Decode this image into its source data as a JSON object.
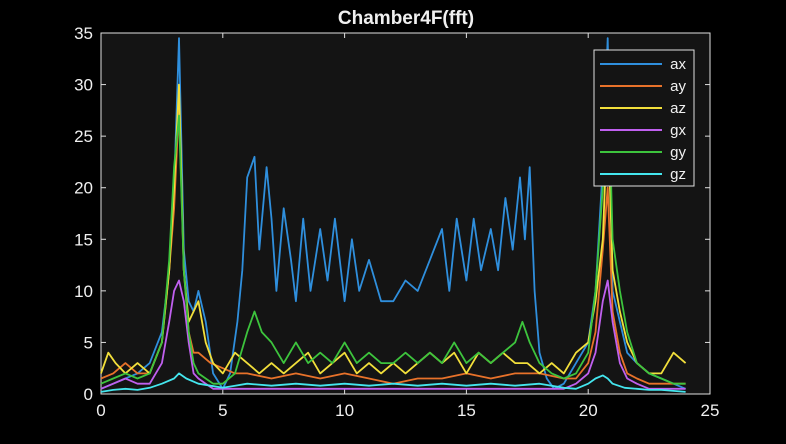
{
  "chart_data": {
    "type": "line",
    "title": "Chamber4F(fft)",
    "xlabel": "",
    "ylabel": "",
    "xlim": [
      0,
      25
    ],
    "ylim": [
      0,
      35
    ],
    "xticks": [
      0,
      5,
      10,
      15,
      20,
      25
    ],
    "yticks": [
      0,
      5,
      10,
      15,
      20,
      25,
      30,
      35
    ],
    "grid": false,
    "legend_position": "top-right",
    "background": "#141414",
    "axis_color": "#e0e0e0",
    "series": [
      {
        "name": "ax",
        "color": "#2f8fdd",
        "x": [
          0,
          0.5,
          1,
          1.5,
          2,
          2.5,
          2.8,
          3,
          3.2,
          3.4,
          3.6,
          3.8,
          4,
          4.3,
          4.6,
          5,
          5.3,
          5.6,
          5.8,
          6,
          6.3,
          6.5,
          6.8,
          7,
          7.2,
          7.5,
          7.8,
          8,
          8.3,
          8.6,
          9,
          9.3,
          9.6,
          10,
          10.3,
          10.6,
          11,
          11.5,
          12,
          12.5,
          13,
          13.5,
          14,
          14.3,
          14.6,
          15,
          15.3,
          15.6,
          16,
          16.3,
          16.6,
          16.9,
          17.2,
          17.4,
          17.6,
          17.8,
          18,
          18.3,
          18.6,
          19,
          19.5,
          20,
          20.3,
          20.6,
          20.8,
          21,
          21.3,
          21.6,
          22,
          22.5,
          23,
          23.5,
          24
        ],
        "values": [
          0.5,
          1,
          1.5,
          2,
          3,
          6,
          12,
          20,
          34.5,
          14,
          9,
          8,
          10,
          7,
          2,
          0.5,
          2,
          7,
          12,
          21,
          23,
          14,
          22,
          17,
          10,
          18,
          13,
          9,
          17,
          10,
          16,
          11,
          17,
          9,
          15,
          10,
          13,
          9,
          9,
          11,
          10,
          13,
          16,
          10,
          17,
          11,
          17,
          12,
          16,
          12,
          19,
          14,
          21,
          15,
          22,
          10,
          4,
          1.5,
          0.5,
          1,
          3,
          5,
          10,
          22,
          34.5,
          10,
          7,
          4,
          3,
          2,
          1.5,
          1,
          0.5
        ]
      },
      {
        "name": "ay",
        "color": "#e8722a",
        "x": [
          0,
          0.5,
          1,
          1.5,
          2,
          2.5,
          2.8,
          3,
          3.2,
          3.4,
          3.6,
          3.8,
          4,
          4.5,
          5,
          5.5,
          6,
          7,
          8,
          9,
          10,
          11,
          12,
          13,
          14,
          15,
          16,
          17,
          18,
          19,
          19.5,
          20,
          20.3,
          20.6,
          20.8,
          21,
          21.3,
          21.6,
          22,
          22.5,
          23,
          23.5,
          24
        ],
        "values": [
          1.5,
          2,
          3,
          2,
          2,
          5,
          12,
          18,
          28,
          12,
          6,
          4,
          4,
          3,
          2.5,
          2,
          2,
          1.5,
          2,
          1.5,
          2,
          1.5,
          1,
          1.5,
          1.5,
          2,
          1.5,
          2,
          2,
          1.5,
          1.5,
          3,
          6,
          14,
          20,
          8,
          4,
          2,
          1.5,
          1,
          1,
          1,
          1
        ]
      },
      {
        "name": "az",
        "color": "#f2df3b",
        "x": [
          0,
          0.3,
          0.6,
          1,
          1.5,
          2,
          2.5,
          2.8,
          3,
          3.2,
          3.4,
          3.6,
          3.8,
          4,
          4.3,
          4.6,
          5,
          5.5,
          6,
          6.5,
          7,
          7.5,
          8,
          8.5,
          9,
          9.5,
          10,
          10.5,
          11,
          11.5,
          12,
          12.5,
          13,
          13.5,
          14,
          14.5,
          15,
          15.5,
          16,
          16.5,
          17,
          17.5,
          18,
          18.5,
          19,
          19.5,
          20,
          20.3,
          20.6,
          20.8,
          21,
          21.3,
          21.6,
          22,
          22.5,
          23,
          23.5,
          24
        ],
        "values": [
          2,
          4,
          3,
          2,
          3,
          2,
          5,
          12,
          20,
          30,
          12,
          7,
          8,
          9,
          5,
          3,
          2,
          4,
          3,
          2,
          3,
          2,
          3,
          4,
          2,
          3,
          4,
          2,
          3,
          2,
          3,
          2,
          3,
          4,
          3,
          4,
          2,
          4,
          3,
          4,
          3,
          3,
          2,
          3,
          2,
          4,
          5,
          9,
          15,
          27,
          12,
          8,
          5,
          3,
          2,
          2,
          4,
          3
        ]
      },
      {
        "name": "gx",
        "color": "#c060ef",
        "x": [
          0,
          0.5,
          1,
          1.5,
          2,
          2.5,
          2.8,
          3,
          3.2,
          3.4,
          3.6,
          3.8,
          4,
          4.3,
          4.6,
          5,
          5.5,
          6,
          7,
          8,
          9,
          10,
          11,
          12,
          13,
          14,
          15,
          16,
          17,
          18,
          19,
          19.5,
          20,
          20.3,
          20.6,
          20.8,
          21,
          21.3,
          21.6,
          22,
          22.5,
          23,
          23.5,
          24
        ],
        "values": [
          0.5,
          1,
          1.5,
          1,
          1,
          3,
          7,
          10,
          11,
          9,
          5,
          2,
          1.5,
          1,
          0.5,
          0.5,
          0.5,
          0.5,
          0.5,
          0.5,
          0.5,
          0.5,
          0.5,
          0.5,
          0.5,
          0.5,
          0.5,
          0.5,
          0.5,
          0.5,
          0.5,
          1,
          2,
          4,
          9,
          11,
          7,
          3,
          1.5,
          1,
          0.5,
          0.5,
          0.5,
          0.5
        ]
      },
      {
        "name": "gy",
        "color": "#3dc43d",
        "x": [
          0,
          0.5,
          1,
          1.5,
          2,
          2.5,
          2.8,
          3,
          3.2,
          3.4,
          3.6,
          3.8,
          4,
          4.3,
          4.6,
          5,
          5.5,
          6,
          6.3,
          6.6,
          7,
          7.5,
          8,
          8.5,
          9,
          9.5,
          10,
          10.5,
          11,
          11.5,
          12,
          12.5,
          13,
          13.5,
          14,
          14.5,
          15,
          15.5,
          16,
          16.5,
          17,
          17.3,
          17.6,
          18,
          18.5,
          19,
          19.5,
          20,
          20.3,
          20.6,
          20.8,
          21,
          21.3,
          21.6,
          22,
          22.5,
          23,
          23.5,
          24
        ],
        "values": [
          1,
          1.5,
          2,
          1.5,
          2,
          5,
          13,
          22,
          27,
          12,
          6,
          3,
          2,
          1.5,
          1,
          1,
          2,
          6,
          8,
          6,
          5,
          3,
          5,
          3,
          4,
          3,
          5,
          3,
          4,
          3,
          3,
          4,
          3,
          4,
          3,
          5,
          3,
          4,
          3,
          4,
          5,
          7,
          5,
          3,
          2,
          1.5,
          2,
          4,
          10,
          20,
          33,
          15,
          10,
          6,
          3,
          2,
          1.5,
          1,
          1
        ]
      },
      {
        "name": "gz",
        "color": "#44e6ee",
        "x": [
          0,
          0.5,
          1,
          1.5,
          2,
          2.5,
          3,
          3.2,
          3.5,
          4,
          4.5,
          5,
          5.5,
          6,
          7,
          8,
          9,
          10,
          11,
          12,
          13,
          14,
          15,
          16,
          17,
          18,
          19,
          19.5,
          20,
          20.3,
          20.6,
          20.8,
          21,
          21.5,
          22,
          22.5,
          23,
          23.5,
          24
        ],
        "values": [
          0.2,
          0.4,
          0.5,
          0.4,
          0.6,
          1,
          1.5,
          2,
          1.5,
          1,
          0.8,
          0.6,
          0.8,
          1,
          0.8,
          1,
          0.8,
          1,
          0.8,
          1,
          0.8,
          1,
          0.8,
          1,
          0.8,
          1,
          0.6,
          0.5,
          1,
          1.5,
          1.8,
          1.5,
          1,
          0.6,
          0.5,
          0.4,
          0.4,
          0.3,
          0.2
        ]
      }
    ]
  }
}
